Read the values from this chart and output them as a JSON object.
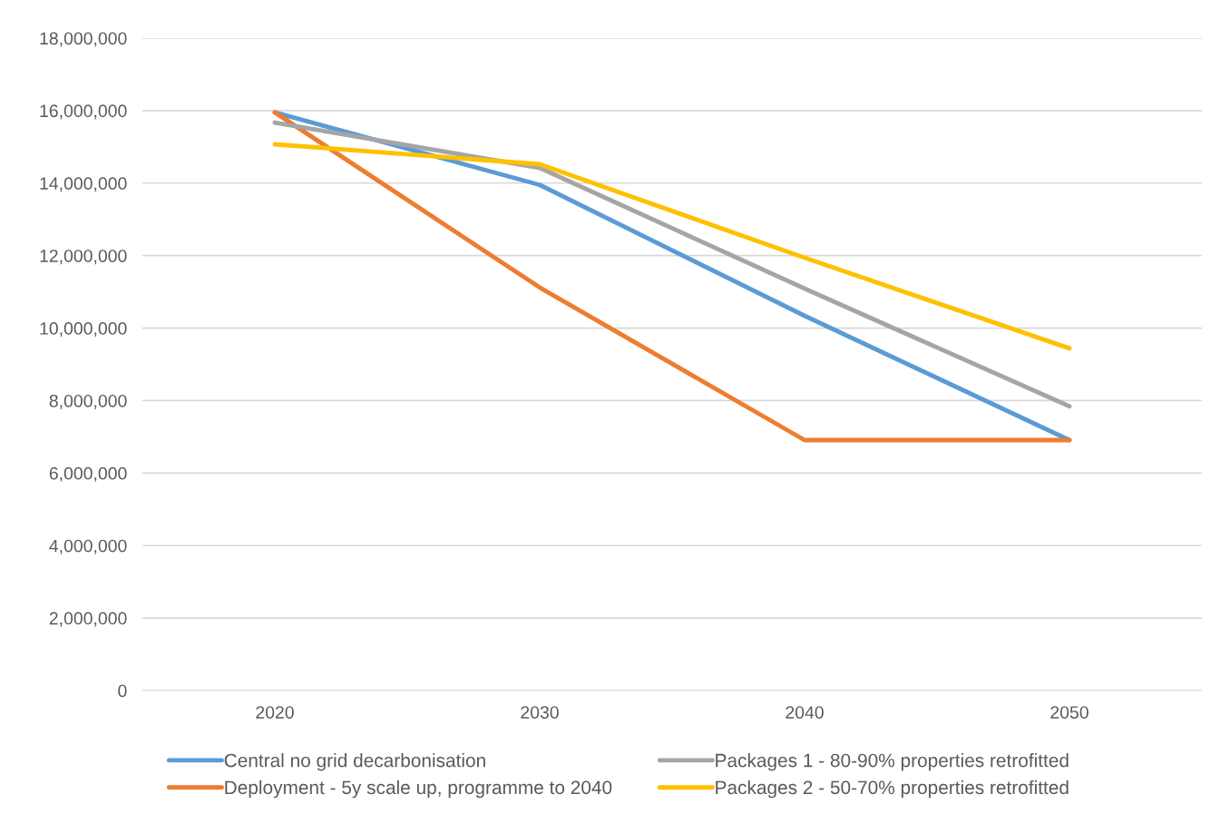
{
  "chart_data": {
    "type": "line",
    "categories": [
      "2020",
      "2030",
      "2040",
      "2050"
    ],
    "series": [
      {
        "name": "Central no grid decarbonisation",
        "color": "#5b9bd5",
        "values": [
          15950000,
          13950000,
          10340000,
          6910000
        ]
      },
      {
        "name": "Deployment - 5y scale up, programme to 2040",
        "color": "#ed7d31",
        "values": [
          15950000,
          11120000,
          6910000,
          6910000
        ]
      },
      {
        "name": "Packages 1 - 80-90% properties retrofitted",
        "color": "#a5a5a5",
        "values": [
          15670000,
          14420000,
          11090000,
          7840000
        ]
      },
      {
        "name": "Packages 2 - 50-70% properties retrofitted",
        "color": "#ffc000",
        "values": [
          15070000,
          14520000,
          11940000,
          9440000
        ]
      }
    ],
    "ylim": [
      0,
      18000000
    ],
    "yticks": [
      {
        "value": 0,
        "label": "0"
      },
      {
        "value": 2000000,
        "label": "2,000,000"
      },
      {
        "value": 4000000,
        "label": "4,000,000"
      },
      {
        "value": 6000000,
        "label": "6,000,000"
      },
      {
        "value": 8000000,
        "label": "8,000,000"
      },
      {
        "value": 10000000,
        "label": "10,000,000"
      },
      {
        "value": 12000000,
        "label": "12,000,000"
      },
      {
        "value": 14000000,
        "label": "14,000,000"
      },
      {
        "value": 16000000,
        "label": "16,000,000"
      },
      {
        "value": 18000000,
        "label": "18,000,000"
      }
    ],
    "grid": "y",
    "legend": "bottom",
    "marker": "none",
    "line_style": "solid"
  }
}
